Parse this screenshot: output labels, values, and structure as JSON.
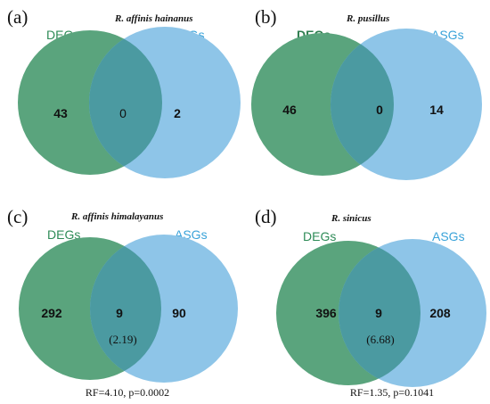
{
  "colors": {
    "degs_fill": "#5aa47d",
    "asgs_fill": "#8ec5e8",
    "overlap_fill": "#4b9aa1",
    "degs_label": "#2e8b57",
    "asgs_label": "#3aa3d9",
    "text": "#111111"
  },
  "panels": [
    {
      "letter": "(a)",
      "species": "R. affinis hainanus",
      "left_label": "DEGs",
      "right_label": "ASGs",
      "left_count": "43",
      "overlap_count": "0",
      "right_count": "2",
      "expected": "",
      "stats": ""
    },
    {
      "letter": "(b)",
      "species": "R. pusillus",
      "left_label": "DEGs",
      "right_label": "ASGs",
      "left_count": "46",
      "overlap_count": "0",
      "right_count": "14",
      "expected": "",
      "stats": ""
    },
    {
      "letter": "(c)",
      "species": "R. affinis himalayanus",
      "left_label": "DEGs",
      "right_label": "ASGs",
      "left_count": "292",
      "overlap_count": "9",
      "right_count": "90",
      "expected": "(2.19)",
      "stats": "RF=4.10, p=0.0002"
    },
    {
      "letter": "(d)",
      "species": "R. sinicus",
      "left_label": "DEGs",
      "right_label": "ASGs",
      "left_count": "396",
      "overlap_count": "9",
      "right_count": "208",
      "expected": "(6.68)",
      "stats": "RF=1.35, p=0.1041"
    }
  ]
}
